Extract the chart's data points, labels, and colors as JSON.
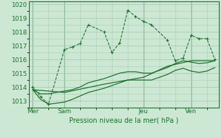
{
  "bg_color": "#cce8d4",
  "grid_color": "#a8c8b0",
  "line_color": "#1a6e2a",
  "xlabel": "Pression niveau de la mer( hPa )",
  "ylim": [
    1012.5,
    1020.2
  ],
  "yticks": [
    1013,
    1014,
    1015,
    1016,
    1017,
    1018,
    1019,
    1020
  ],
  "xlim": [
    0,
    24
  ],
  "day_labels": [
    "Mer",
    "Sam",
    "Jeu",
    "Ven"
  ],
  "day_positions": [
    0.5,
    4.5,
    14.5,
    20.5
  ],
  "vline_positions": [
    0.5,
    4.5,
    14.5,
    20.5
  ],
  "series1": {
    "x": [
      0.5,
      1.5,
      2.5,
      4.5,
      5.5,
      6.5,
      7.5,
      9.5,
      10.5,
      11.5,
      12.5,
      13.5,
      14.5,
      15.5,
      17.5,
      18.5,
      19.5,
      20.5,
      21.5,
      22.5,
      23.5
    ],
    "y": [
      1014.0,
      1013.3,
      1012.75,
      1016.7,
      1016.9,
      1017.15,
      1018.5,
      1018.0,
      1016.5,
      1017.2,
      1019.55,
      1019.1,
      1018.75,
      1018.5,
      1017.4,
      1015.9,
      1016.1,
      1017.75,
      1017.5,
      1017.5,
      1016.0
    ]
  },
  "series2": {
    "x": [
      0.5,
      1.5,
      2.5,
      4.5,
      5.5,
      6.5,
      7.5,
      9.5,
      10.5,
      11.5,
      12.5,
      13.5,
      14.5,
      15.5,
      17.5,
      18.5,
      19.5,
      20.5,
      21.5,
      22.5,
      23.5
    ],
    "y": [
      1013.8,
      1013.5,
      1013.5,
      1013.7,
      1013.8,
      1014.0,
      1014.3,
      1014.6,
      1014.8,
      1015.0,
      1015.1,
      1015.1,
      1015.0,
      1015.0,
      1015.4,
      1015.7,
      1015.9,
      1015.8,
      1015.7,
      1015.75,
      1015.9
    ]
  },
  "series3": {
    "x": [
      0.5,
      1.5,
      2.5,
      4.5,
      5.5,
      6.5,
      7.5,
      9.5,
      10.5,
      11.5,
      12.5,
      13.5,
      14.5,
      15.5,
      17.5,
      18.5,
      19.5,
      20.5,
      21.5,
      22.5,
      23.5
    ],
    "y": [
      1013.8,
      1013.1,
      1012.75,
      1012.9,
      1013.1,
      1013.35,
      1013.6,
      1013.9,
      1014.1,
      1014.3,
      1014.5,
      1014.5,
      1014.5,
      1014.5,
      1014.9,
      1015.2,
      1015.35,
      1015.15,
      1015.05,
      1015.15,
      1015.4
    ]
  },
  "series4": {
    "x": [
      0.5,
      4.5,
      9.5,
      14.5,
      17.5,
      20.5,
      23.5
    ],
    "y": [
      1013.8,
      1013.6,
      1014.2,
      1014.7,
      1015.5,
      1015.9,
      1015.9
    ]
  }
}
